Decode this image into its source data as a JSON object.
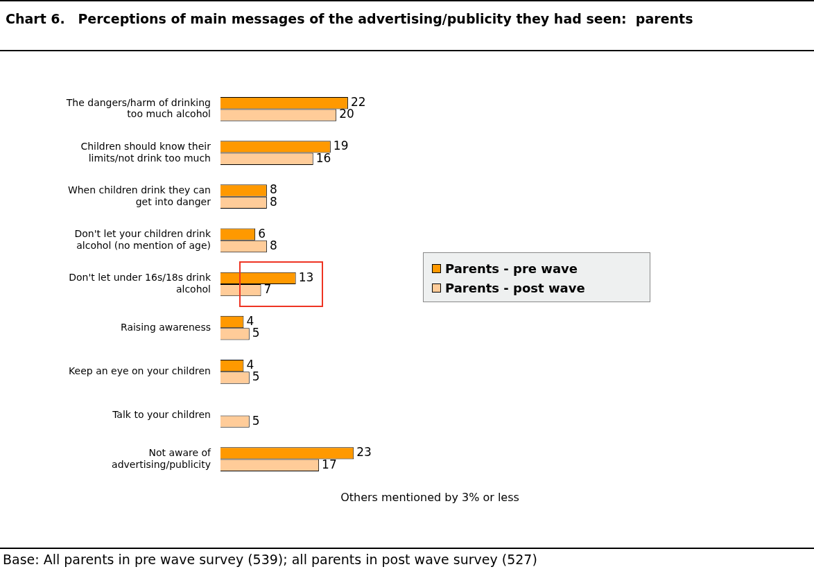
{
  "chart_data": {
    "type": "bar",
    "orientation": "horizontal",
    "title": "Chart 6.\tPerceptions of main messages of the advertising/publicity they had seen:  parents",
    "categories": [
      "The dangers/harm of drinking too much alcohol",
      "Children should know their limits/not drink too much",
      "When children drink they can get into danger",
      "Don't let your children drink alcohol (no mention of age)",
      "Don't let under 16s/18s drink alcohol",
      "Raising awareness",
      "Keep an eye on your children",
      "Talk to your children",
      "Not aware of advertising/publicity"
    ],
    "series": [
      {
        "name": "Parents - pre wave",
        "color": "#ff9900",
        "values": [
          22,
          19,
          8,
          6,
          13,
          4,
          4,
          null,
          23
        ]
      },
      {
        "name": "Parents - post wave",
        "color": "#ffcc99",
        "values": [
          20,
          16,
          8,
          8,
          7,
          5,
          5,
          5,
          17
        ]
      }
    ],
    "tick_labels": "y",
    "legend": "right",
    "data_labels": true,
    "annotations": [
      "Others mentioned by 3% or less",
      "Base: All parents in pre wave survey (539); all parents in post wave survey (527)"
    ]
  }
}
